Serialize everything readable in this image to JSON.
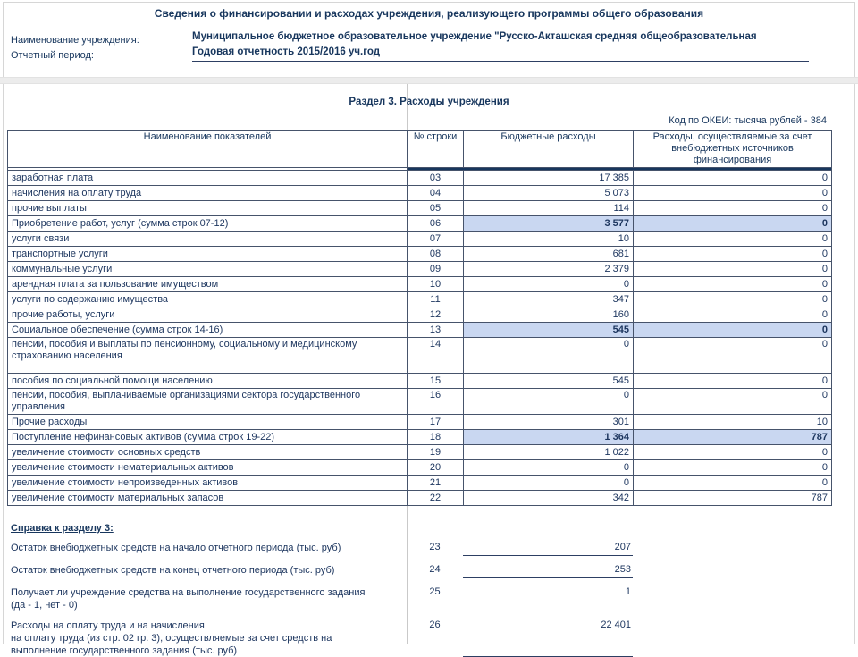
{
  "header": {
    "title": "Сведения о финансировании и расходах учреждения, реализующего программы общего образования",
    "fields": [
      {
        "label": "Наименование учреждения:",
        "value": "Муниципальное бюджетное образовательное учреждение \"Русско-Акташская средняя общеобразовательная"
      },
      {
        "label": "Отчетный период:",
        "value": "Годовая отчетность 2015/2016 уч.год"
      }
    ]
  },
  "section": {
    "title": "Раздел 3. Расходы учреждения",
    "okei_note": "Код по ОКЕИ: тысяча рублей - 384"
  },
  "table": {
    "columns": [
      "Наименование показателей",
      "№ строки",
      "Бюджетные расходы",
      "Расходы, осуществляемые за счет внебюджетных источников финансирования"
    ],
    "rows": [
      {
        "name": "заработная плата",
        "line": "03",
        "budget": "17 385",
        "extra": "0",
        "highlight": false
      },
      {
        "name": "начисления на оплату труда",
        "line": "04",
        "budget": "5 073",
        "extra": "0",
        "highlight": false
      },
      {
        "name": "прочие выплаты",
        "line": "05",
        "budget": "114",
        "extra": "0",
        "highlight": false
      },
      {
        "name": "Приобретение работ, услуг (сумма строк 07-12)",
        "line": "06",
        "budget": "3 577",
        "extra": "0",
        "highlight": true
      },
      {
        "name": "услуги связи",
        "line": "07",
        "budget": "10",
        "extra": "0",
        "highlight": false
      },
      {
        "name": "транспортные услуги",
        "line": "08",
        "budget": "681",
        "extra": "0",
        "highlight": false
      },
      {
        "name": "коммунальные услуги",
        "line": "09",
        "budget": "2 379",
        "extra": "0",
        "highlight": false
      },
      {
        "name": "арендная плата за пользование имуществом",
        "line": "10",
        "budget": "0",
        "extra": "0",
        "highlight": false
      },
      {
        "name": "услуги по содержанию имущества",
        "line": "11",
        "budget": "347",
        "extra": "0",
        "highlight": false
      },
      {
        "name": "прочие работы, услуги",
        "line": "12",
        "budget": "160",
        "extra": "0",
        "highlight": false
      },
      {
        "name": "Социальное обеспечение (сумма строк 14-16)",
        "line": "13",
        "budget": "545",
        "extra": "0",
        "highlight": true
      },
      {
        "name": "пенсии, пособия и выплаты по пенсионному, социальному и медицинскому страхованию населения",
        "line": "14",
        "budget": "0",
        "extra": "0",
        "highlight": false,
        "h": 40
      },
      {
        "name": "пособия по социальной помощи населению",
        "line": "15",
        "budget": "545",
        "extra": "0",
        "highlight": false
      },
      {
        "name": "пенсии, пособия, выплачиваемые организациями сектора государственного управления",
        "line": "16",
        "budget": "0",
        "extra": "0",
        "highlight": false,
        "h": 28
      },
      {
        "name": "Прочие расходы",
        "line": "17",
        "budget": "301",
        "extra": "10",
        "highlight": false
      },
      {
        "name": "Поступление нефинансовых активов (сумма строк 19-22)",
        "line": "18",
        "budget": "1 364",
        "extra": "787",
        "highlight": true
      },
      {
        "name": "увеличение стоимости основных средств",
        "line": "19",
        "budget": "1 022",
        "extra": "0",
        "highlight": false
      },
      {
        "name": "увеличение стоимости нематериальных активов",
        "line": "20",
        "budget": "0",
        "extra": "0",
        "highlight": false
      },
      {
        "name": "увеличение стоимости непроизведенных активов",
        "line": "21",
        "budget": "0",
        "extra": "0",
        "highlight": false
      },
      {
        "name": "увеличение стоимости материальных запасов",
        "line": "22",
        "budget": "342",
        "extra": "787",
        "highlight": false
      }
    ]
  },
  "reference": {
    "title": "Справка к разделу 3:",
    "items": [
      {
        "label": "Остаток внебюджетных средств на начало отчетного периода (тыс. руб)",
        "line": "23",
        "value": "207",
        "gap": false
      },
      {
        "label": "Остаток внебюджетных средств на конец отчетного периода (тыс. руб)",
        "line": "24",
        "value": "253",
        "gap": false
      },
      {
        "label": "Получает ли учреждение средства на выполнение государственного задания\n(да - 1, нет - 0)",
        "line": "25",
        "value": "1",
        "gap": false
      },
      {
        "label": "Расходы на оплату труда и на начисления\nна оплату труда (из стр. 02 гр. 3), осуществляемые за счет средств на\nвыполнение государственного задания (тыс. руб)",
        "line": "26",
        "value": "22 401",
        "gap": true
      }
    ]
  },
  "colors": {
    "accent_navy": "#17365d",
    "text_navy": "#1c355e",
    "highlight_blue": "#c9d7f1",
    "table_border": "#46536b",
    "underline_navy": "#2d3f63",
    "divider_gray": "#c9c9c9",
    "band_gray": "#ececec"
  }
}
